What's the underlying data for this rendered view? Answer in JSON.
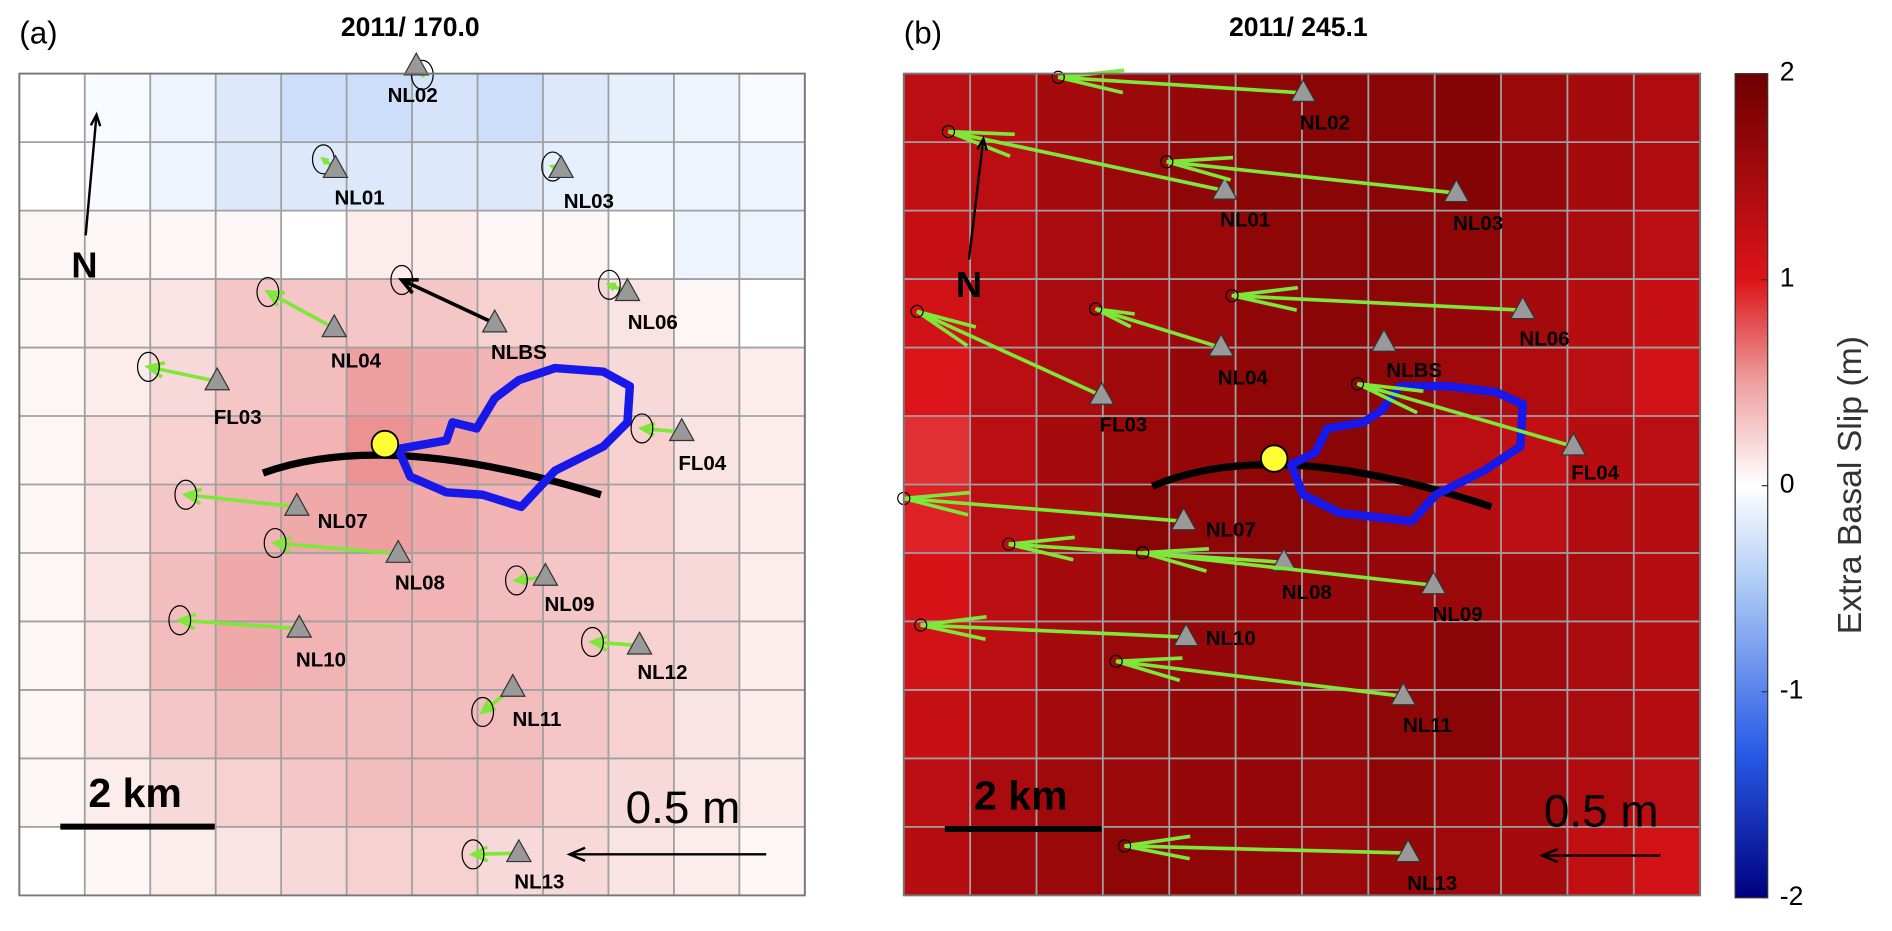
{
  "panels": [
    {
      "label": "(a)",
      "title": "2011/ 170.0",
      "north": "N",
      "scale_bar": "2 km",
      "arrow_scale": "0.5 m",
      "stations": [
        "NL02",
        "NL01",
        "NL03",
        "NL04",
        "NLBS",
        "NL06",
        "FL03",
        "FL04",
        "NL07",
        "NL08",
        "NL09",
        "NL10",
        "NL11",
        "NL12",
        "NL13"
      ],
      "grid": [
        [
          0,
          -0.05,
          -0.1,
          -0.2,
          -0.3,
          -0.3,
          -0.25,
          -0.3,
          -0.2,
          -0.15,
          -0.1,
          -0.05
        ],
        [
          0,
          -0.05,
          -0.1,
          -0.2,
          -0.2,
          -0.2,
          -0.2,
          -0.2,
          -0.15,
          -0.1,
          -0.1,
          -0.1
        ],
        [
          0.05,
          0.05,
          0.05,
          0.05,
          0,
          0.1,
          0.1,
          0.05,
          0.05,
          0,
          -0.1,
          -0.1
        ],
        [
          0.05,
          0.1,
          0.15,
          0.3,
          0.3,
          0.3,
          0.3,
          0.25,
          0.2,
          0.15,
          0.05,
          0
        ],
        [
          0.05,
          0.1,
          0.2,
          0.3,
          0.35,
          0.5,
          0.45,
          0.4,
          0.3,
          0.2,
          0.15,
          0.1
        ],
        [
          0.05,
          0.15,
          0.25,
          0.35,
          0.4,
          0.55,
          0.5,
          0.45,
          0.35,
          0.25,
          0.15,
          0.1
        ],
        [
          0.05,
          0.15,
          0.3,
          0.4,
          0.45,
          0.5,
          0.45,
          0.4,
          0.35,
          0.25,
          0.15,
          0.1
        ],
        [
          0.05,
          0.15,
          0.35,
          0.45,
          0.4,
          0.4,
          0.4,
          0.35,
          0.3,
          0.25,
          0.2,
          0.1
        ],
        [
          0.05,
          0.15,
          0.35,
          0.45,
          0.4,
          0.35,
          0.35,
          0.35,
          0.3,
          0.25,
          0.2,
          0.1
        ],
        [
          0.05,
          0.15,
          0.3,
          0.35,
          0.35,
          0.35,
          0.35,
          0.35,
          0.3,
          0.25,
          0.15,
          0.1
        ],
        [
          0.05,
          0.1,
          0.2,
          0.25,
          0.3,
          0.35,
          0.35,
          0.35,
          0.25,
          0.2,
          0.15,
          0.1
        ],
        [
          0,
          0.05,
          0.1,
          0.15,
          0.2,
          0.25,
          0.25,
          0.2,
          0.2,
          0.15,
          0.1,
          0.05
        ]
      ]
    },
    {
      "label": "(b)",
      "title": "2011/ 245.1",
      "north": "N",
      "scale_bar": "2 km",
      "arrow_scale": "0.5 m",
      "stations": [
        "NL02",
        "NL01",
        "NL03",
        "NL06",
        "NL04",
        "NLBS",
        "FL03",
        "FL04",
        "NL07",
        "NL08",
        "NL09",
        "NL10",
        "NL11",
        "NL13"
      ],
      "grid": [
        [
          1.3,
          1.35,
          1.5,
          1.6,
          1.65,
          1.7,
          1.75,
          1.75,
          1.8,
          1.6,
          1.5,
          1.4
        ],
        [
          1.25,
          1.3,
          1.5,
          1.6,
          1.7,
          1.75,
          1.75,
          1.75,
          1.8,
          1.65,
          1.5,
          1.4
        ],
        [
          1.2,
          1.3,
          1.45,
          1.55,
          1.6,
          1.7,
          1.7,
          1.75,
          1.7,
          1.6,
          1.45,
          1.3
        ],
        [
          1.1,
          1.3,
          1.45,
          1.5,
          1.6,
          1.7,
          1.75,
          1.7,
          1.65,
          1.5,
          1.35,
          1.2
        ],
        [
          1.0,
          1.3,
          1.45,
          1.55,
          1.65,
          1.7,
          1.75,
          1.7,
          1.55,
          1.4,
          1.3,
          1.1
        ],
        [
          0.9,
          1.3,
          1.5,
          1.6,
          1.65,
          1.7,
          1.75,
          1.65,
          1.3,
          1.25,
          1.35,
          1.3
        ],
        [
          0.95,
          1.3,
          1.5,
          1.75,
          1.7,
          1.75,
          1.7,
          1.6,
          1.35,
          1.3,
          1.4,
          1.35
        ],
        [
          1.05,
          1.3,
          1.5,
          1.6,
          1.7,
          1.65,
          1.65,
          1.65,
          1.6,
          1.5,
          1.45,
          1.35
        ],
        [
          1.1,
          1.3,
          1.5,
          1.6,
          1.65,
          1.6,
          1.65,
          1.65,
          1.75,
          1.55,
          1.45,
          1.35
        ],
        [
          1.2,
          1.35,
          1.5,
          1.6,
          1.65,
          1.65,
          1.65,
          1.7,
          1.75,
          1.55,
          1.45,
          1.35
        ],
        [
          1.3,
          1.45,
          1.55,
          1.6,
          1.65,
          1.65,
          1.6,
          1.7,
          1.6,
          1.55,
          1.4,
          1.3
        ],
        [
          1.35,
          1.55,
          1.6,
          1.7,
          1.7,
          1.65,
          1.6,
          1.65,
          1.55,
          1.5,
          1.25,
          1.1
        ]
      ]
    }
  ],
  "colorbar": {
    "label": "Extra Basal Slip (m)",
    "lim": [
      -2,
      2
    ],
    "ticks": [
      -2,
      -1,
      0,
      1,
      2
    ]
  }
}
